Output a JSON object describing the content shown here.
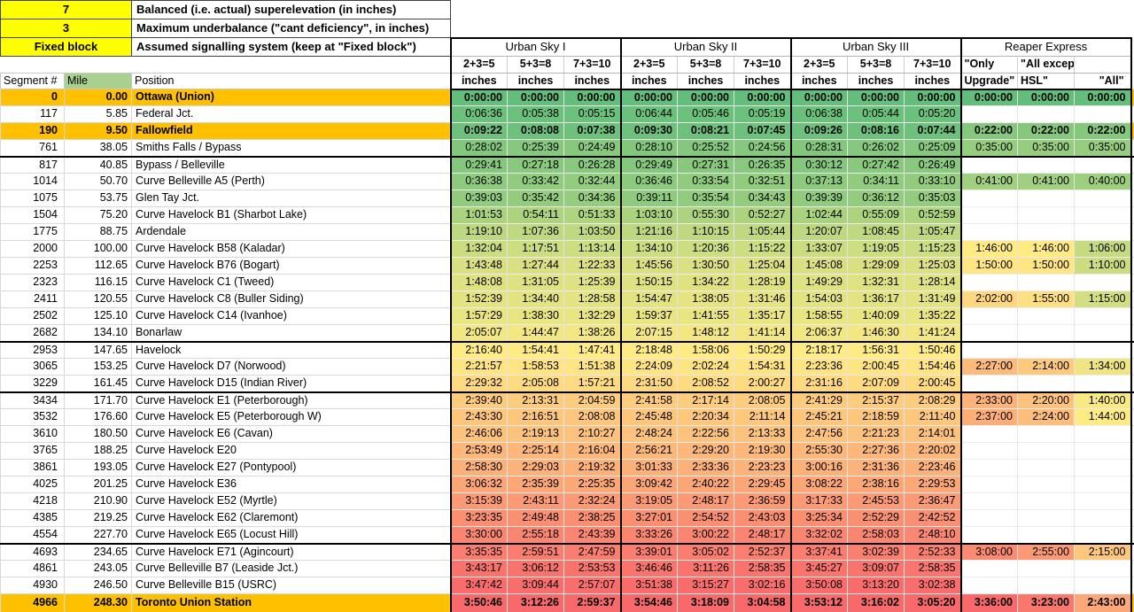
{
  "controls": {
    "superelevation_value": "7",
    "superelevation_label": "Balanced (i.e. actual) superelevation (in inches)",
    "underbalance_value": "3",
    "underbalance_label": "Maximum underbalance (\"cant deficiency\", in inches)",
    "signalling_value": "Fixed block",
    "signalling_label": "Assumed signalling system (keep at \"Fixed block\")"
  },
  "colors": {
    "heat_min": "#63BE7B",
    "heat_mid": "#FFEB84",
    "heat_max": "#F8696B",
    "highlight_row": "#FFC000",
    "input_cell": "#FFFF00",
    "mile_header": "#A9D08E",
    "band": "#BFBFBF"
  },
  "table": {
    "left_headers": [
      "Segment #",
      "Mile",
      "Position"
    ],
    "groups": [
      {
        "name": "Urban Sky I",
        "cols": [
          {
            "l1": "2+3=5",
            "l2": "inches",
            "align": "c"
          },
          {
            "l1": "5+3=8",
            "l2": "inches",
            "align": "c"
          },
          {
            "l1": "7+3=10",
            "l2": "inches",
            "align": "c"
          }
        ]
      },
      {
        "name": "Urban Sky II",
        "cols": [
          {
            "l1": "2+3=5",
            "l2": "inches",
            "align": "c"
          },
          {
            "l1": "5+3=8",
            "l2": "inches",
            "align": "c"
          },
          {
            "l1": "7+3=10",
            "l2": "inches",
            "align": "c"
          }
        ]
      },
      {
        "name": "Urban Sky III",
        "cols": [
          {
            "l1": "2+3=5",
            "l2": "inches",
            "align": "c"
          },
          {
            "l1": "5+3=8",
            "l2": "inches",
            "align": "c"
          },
          {
            "l1": "7+3=10",
            "l2": "inches",
            "align": "c"
          }
        ]
      },
      {
        "name": "Reaper Express",
        "cols": [
          {
            "l1": "\"Only",
            "l2": "Upgrade\"",
            "align": "l"
          },
          {
            "l1": "\"All except",
            "l2": "HSL\"",
            "align": "l"
          },
          {
            "l1": "",
            "l2": "\"All\"",
            "align": "r"
          }
        ]
      }
    ],
    "scale_groups": [
      [
        0
      ],
      [
        1
      ],
      [
        2
      ],
      [
        3
      ],
      [
        4
      ],
      [
        5
      ],
      [
        6
      ],
      [
        7
      ],
      [
        8
      ],
      [
        9,
        10,
        11
      ]
    ],
    "rows": [
      {
        "segment": "0",
        "mile": "0.00",
        "position": "Ottawa (Union)",
        "hl": true,
        "times": [
          "0:00:00",
          "0:00:00",
          "0:00:00",
          "0:00:00",
          "0:00:00",
          "0:00:00",
          "0:00:00",
          "0:00:00",
          "0:00:00",
          "0:00:00",
          "0:00:00",
          "0:00:00"
        ]
      },
      {
        "segment": "117",
        "mile": "5.85",
        "position": "Federal Jct.",
        "times": [
          "0:06:36",
          "0:05:38",
          "0:05:15",
          "0:06:44",
          "0:05:46",
          "0:05:19",
          "0:06:38",
          "0:05:44",
          "0:05:20",
          "",
          "",
          ""
        ]
      },
      {
        "segment": "190",
        "mile": "9.50",
        "position": "Fallowfield",
        "hl": true,
        "times": [
          "0:09:22",
          "0:08:08",
          "0:07:38",
          "0:09:30",
          "0:08:21",
          "0:07:45",
          "0:09:26",
          "0:08:16",
          "0:07:44",
          "0:22:00",
          "0:22:00",
          "0:22:00"
        ]
      },
      {
        "segment": "761",
        "mile": "38.05",
        "position": "Smiths Falls / Bypass",
        "sb": true,
        "times": [
          "0:28:02",
          "0:25:39",
          "0:24:49",
          "0:28:10",
          "0:25:52",
          "0:24:56",
          "0:28:31",
          "0:26:02",
          "0:25:09",
          "0:35:00",
          "0:35:00",
          "0:35:00"
        ]
      },
      {
        "segment": "817",
        "mile": "40.85",
        "position": "Bypass / Belleville",
        "times": [
          "0:29:41",
          "0:27:18",
          "0:26:28",
          "0:29:49",
          "0:27:31",
          "0:26:35",
          "0:30:12",
          "0:27:42",
          "0:26:49",
          "",
          "",
          ""
        ]
      },
      {
        "segment": "1014",
        "mile": "50.70",
        "position": "Curve Belleville A5 (Perth)",
        "times": [
          "0:36:38",
          "0:33:42",
          "0:32:44",
          "0:36:46",
          "0:33:54",
          "0:32:51",
          "0:37:13",
          "0:34:11",
          "0:33:10",
          "0:41:00",
          "0:41:00",
          "0:40:00"
        ]
      },
      {
        "segment": "1075",
        "mile": "53.75",
        "position": "Glen Tay Jct.",
        "times": [
          "0:39:03",
          "0:35:42",
          "0:34:36",
          "0:39:11",
          "0:35:54",
          "0:34:43",
          "0:39:39",
          "0:36:12",
          "0:35:03",
          "",
          "",
          ""
        ]
      },
      {
        "segment": "1504",
        "mile": "75.20",
        "position": "Curve Havelock B1 (Sharbot Lake)",
        "times": [
          "1:01:53",
          "0:54:11",
          "0:51:33",
          "1:03:10",
          "0:55:30",
          "0:52:27",
          "1:02:44",
          "0:55:09",
          "0:52:59",
          "",
          "",
          ""
        ]
      },
      {
        "segment": "1775",
        "mile": "88.75",
        "position": "Ardendale",
        "times": [
          "1:19:10",
          "1:07:36",
          "1:03:50",
          "1:21:16",
          "1:10:15",
          "1:05:44",
          "1:20:07",
          "1:08:45",
          "1:05:47",
          "",
          "",
          ""
        ]
      },
      {
        "segment": "2000",
        "mile": "100.00",
        "position": "Curve Havelock B58 (Kaladar)",
        "times": [
          "1:32:04",
          "1:17:51",
          "1:13:14",
          "1:34:10",
          "1:20:36",
          "1:15:22",
          "1:33:07",
          "1:19:05",
          "1:15:23",
          "1:46:00",
          "1:46:00",
          "1:06:00"
        ]
      },
      {
        "segment": "2253",
        "mile": "112.65",
        "position": "Curve Havelock B76 (Bogart)",
        "times": [
          "1:43:48",
          "1:27:44",
          "1:22:33",
          "1:45:56",
          "1:30:50",
          "1:25:04",
          "1:45:08",
          "1:29:09",
          "1:25:03",
          "1:50:00",
          "1:50:00",
          "1:10:00"
        ]
      },
      {
        "segment": "2323",
        "mile": "116.15",
        "position": "Curve Havelock C1 (Tweed)",
        "times": [
          "1:48:08",
          "1:31:05",
          "1:25:39",
          "1:50:15",
          "1:34:22",
          "1:28:19",
          "1:49:29",
          "1:32:31",
          "1:28:14",
          "",
          "",
          ""
        ]
      },
      {
        "segment": "2411",
        "mile": "120.55",
        "position": "Curve Havelock C8 (Buller Siding)",
        "times": [
          "1:52:39",
          "1:34:40",
          "1:28:58",
          "1:54:47",
          "1:38:05",
          "1:31:46",
          "1:54:03",
          "1:36:17",
          "1:31:49",
          "2:02:00",
          "1:55:00",
          "1:15:00"
        ]
      },
      {
        "segment": "2502",
        "mile": "125.10",
        "position": "Curve Havelock C14 (Ivanhoe)",
        "times": [
          "1:57:29",
          "1:38:30",
          "1:32:29",
          "1:59:37",
          "1:41:55",
          "1:35:17",
          "1:58:55",
          "1:40:09",
          "1:35:22",
          "",
          "",
          ""
        ]
      },
      {
        "segment": "2682",
        "mile": "134.10",
        "position": "Bonarlaw",
        "sb": true,
        "times": [
          "2:05:07",
          "1:44:47",
          "1:38:26",
          "2:07:15",
          "1:48:12",
          "1:41:14",
          "2:06:37",
          "1:46:30",
          "1:41:24",
          "",
          "",
          ""
        ]
      },
      {
        "segment": "2953",
        "mile": "147.65",
        "position": "Havelock",
        "times": [
          "2:16:40",
          "1:54:41",
          "1:47:41",
          "2:18:48",
          "1:58:06",
          "1:50:29",
          "2:18:17",
          "1:56:31",
          "1:50:46",
          "",
          "",
          ""
        ]
      },
      {
        "segment": "3065",
        "mile": "153.25",
        "position": "Curve Havelock D7 (Norwood)",
        "times": [
          "2:21:57",
          "1:58:53",
          "1:51:38",
          "2:24:09",
          "2:02:24",
          "1:54:31",
          "2:23:36",
          "2:00:45",
          "1:54:46",
          "2:27:00",
          "2:14:00",
          "1:34:00"
        ]
      },
      {
        "segment": "3229",
        "mile": "161.45",
        "position": "Curve Havelock D15 (Indian River)",
        "sb": true,
        "times": [
          "2:29:32",
          "2:05:08",
          "1:57:21",
          "2:31:50",
          "2:08:52",
          "2:00:27",
          "2:31:16",
          "2:07:09",
          "2:00:45",
          "",
          "",
          ""
        ]
      },
      {
        "segment": "3434",
        "mile": "171.70",
        "position": "Curve Havelock E1 (Peterborough)",
        "times": [
          "2:39:40",
          "2:13:31",
          "2:04:59",
          "2:41:58",
          "2:17:14",
          "2:08:05",
          "2:41:29",
          "2:15:37",
          "2:08:29",
          "2:33:00",
          "2:20:00",
          "1:40:00"
        ]
      },
      {
        "segment": "3532",
        "mile": "176.60",
        "position": "Curve Havelock E5 (Peterborough W)",
        "times": [
          "2:43:30",
          "2:16:51",
          "2:08:08",
          "2:45:48",
          "2:20:34",
          "2:11:14",
          "2:45:21",
          "2:18:59",
          "2:11:40",
          "2:37:00",
          "2:24:00",
          "1:44:00"
        ]
      },
      {
        "segment": "3610",
        "mile": "180.50",
        "position": "Curve Havelock E6 (Cavan)",
        "times": [
          "2:46:06",
          "2:19:13",
          "2:10:27",
          "2:48:24",
          "2:22:56",
          "2:13:33",
          "2:47:56",
          "2:21:23",
          "2:14:01",
          "",
          "",
          ""
        ]
      },
      {
        "segment": "3765",
        "mile": "188.25",
        "position": "Curve Havelock E20",
        "times": [
          "2:53:49",
          "2:25:14",
          "2:16:04",
          "2:56:21",
          "2:29:20",
          "2:19:30",
          "2:55:30",
          "2:27:36",
          "2:20:02",
          "",
          "",
          ""
        ]
      },
      {
        "segment": "3861",
        "mile": "193.05",
        "position": "Curve Havelock E27 (Pontypool)",
        "times": [
          "2:58:30",
          "2:29:03",
          "2:19:32",
          "3:01:33",
          "2:33:36",
          "2:23:23",
          "3:00:16",
          "2:31:36",
          "2:23:46",
          "",
          "",
          ""
        ]
      },
      {
        "segment": "4025",
        "mile": "201.25",
        "position": "Curve Havelock E36",
        "times": [
          "3:06:32",
          "2:35:39",
          "2:25:35",
          "3:09:42",
          "2:40:22",
          "2:29:45",
          "3:08:22",
          "2:38:16",
          "2:29:53",
          "",
          "",
          ""
        ]
      },
      {
        "segment": "4218",
        "mile": "210.90",
        "position": "Curve Havelock E52 (Myrtle)",
        "times": [
          "3:15:39",
          "2:43:11",
          "2:32:24",
          "3:19:05",
          "2:48:17",
          "2:36:59",
          "3:17:33",
          "2:45:53",
          "2:36:47",
          "",
          "",
          ""
        ]
      },
      {
        "segment": "4385",
        "mile": "219.25",
        "position": "Curve Havelock E62 (Claremont)",
        "times": [
          "3:23:35",
          "2:49:48",
          "2:38:25",
          "3:27:01",
          "2:54:52",
          "2:43:03",
          "3:25:34",
          "2:52:29",
          "2:42:52",
          "",
          "",
          ""
        ]
      },
      {
        "segment": "4554",
        "mile": "227.70",
        "position": "Curve Havelock E65 (Locust Hill)",
        "sb": true,
        "times": [
          "3:30:00",
          "2:55:18",
          "2:43:39",
          "3:33:26",
          "3:00:22",
          "2:48:17",
          "3:32:02",
          "2:58:03",
          "2:48:10",
          "",
          "",
          ""
        ]
      },
      {
        "segment": "4693",
        "mile": "234.65",
        "position": "Curve Havelock E71 (Agincourt)",
        "times": [
          "3:35:35",
          "2:59:51",
          "2:47:59",
          "3:39:01",
          "3:05:02",
          "2:52:37",
          "3:37:41",
          "3:02:39",
          "2:52:33",
          "3:08:00",
          "2:55:00",
          "2:15:00"
        ]
      },
      {
        "segment": "4861",
        "mile": "243.05",
        "position": "Curve Belleville B7 (Leaside Jct.)",
        "times": [
          "3:43:17",
          "3:06:12",
          "2:53:53",
          "3:46:46",
          "3:11:26",
          "2:58:35",
          "3:45:27",
          "3:09:07",
          "2:58:35",
          "",
          "",
          ""
        ]
      },
      {
        "segment": "4930",
        "mile": "246.50",
        "position": "Curve Belleville B15 (USRC)",
        "times": [
          "3:47:42",
          "3:09:44",
          "2:57:07",
          "3:51:38",
          "3:15:27",
          "3:02:16",
          "3:50:08",
          "3:13:20",
          "3:02:38",
          "",
          "",
          ""
        ]
      },
      {
        "segment": "4966",
        "mile": "248.30",
        "position": "Toronto Union Station",
        "hl": true,
        "sb": true,
        "times": [
          "3:50:46",
          "3:12:26",
          "2:59:37",
          "3:54:46",
          "3:18:09",
          "3:04:58",
          "3:53:12",
          "3:16:02",
          "3:05:20",
          "3:36:00",
          "3:23:00",
          "2:43:00"
        ]
      }
    ]
  }
}
